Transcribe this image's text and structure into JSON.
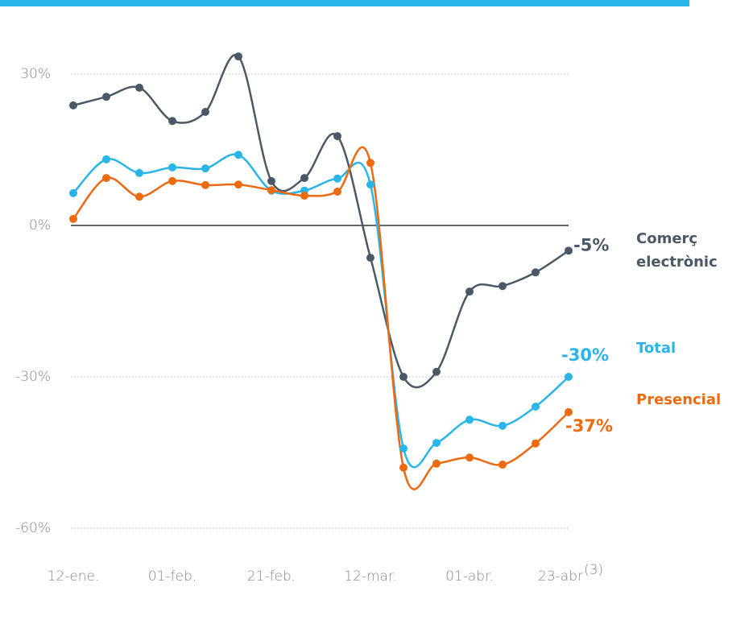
{
  "chart_data": {
    "type": "line",
    "categories": [
      "12-ene.",
      null,
      null,
      "01-feb.",
      null,
      null,
      "21-feb.",
      null,
      null,
      "12-mar.",
      null,
      null,
      "01-abr.",
      null,
      null,
      "23-abr"
    ],
    "category_note": "(3)",
    "ylim": [
      -65,
      35
    ],
    "yticks": [
      {
        "value": 30,
        "label": "30%"
      },
      {
        "value": 0,
        "label": "0%"
      },
      {
        "value": -30,
        "label": "-30%"
      },
      {
        "value": -60,
        "label": "-60%"
      }
    ],
    "grid": true,
    "series": [
      {
        "name": "Comerç electrònic",
        "color": "#4b5966",
        "end_label": "-5%",
        "values": [
          23.8,
          25.5,
          27.3,
          20.7,
          22.5,
          33.5,
          8.8,
          9.4,
          17.7,
          -6.4,
          -30,
          -29,
          -13.1,
          -12,
          -9.3,
          -5
        ]
      },
      {
        "name": "Total",
        "color": "#29b5e8",
        "end_label": "-30%",
        "values": [
          6.4,
          13.1,
          10.4,
          11.5,
          11.3,
          14,
          6.9,
          6.9,
          9.3,
          8.1,
          -44.2,
          -43.1,
          -38.5,
          -39.7,
          -35.9,
          -30
        ]
      },
      {
        "name": "Presencial",
        "color": "#ec6a10",
        "end_label": "-37%",
        "values": [
          1.3,
          9.4,
          5.7,
          8.8,
          8,
          8.1,
          7,
          5.9,
          6.7,
          12.4,
          -48,
          -47.2,
          -46,
          -47.4,
          -43.2,
          -37
        ]
      }
    ]
  }
}
